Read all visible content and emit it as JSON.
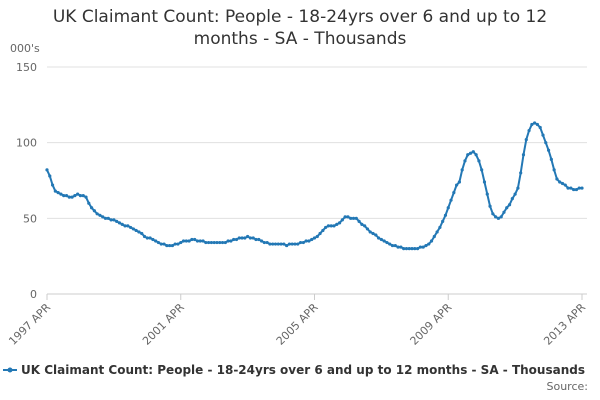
{
  "chart_data": {
    "type": "line",
    "title": "UK Claimant Count: People - 18-24yrs over 6 and up to 12 months - SA - Thousands",
    "y_axis_label": "000's",
    "source": "Source:",
    "ylim": [
      0,
      150
    ],
    "yticks": [
      0,
      50,
      100,
      150
    ],
    "grid": true,
    "legend": "bottom",
    "categories": [
      "1997 APR",
      null,
      null,
      null,
      null,
      null,
      null,
      null,
      null,
      null,
      null,
      null,
      null,
      null,
      null,
      null,
      null,
      null,
      null,
      null,
      null,
      null,
      null,
      null,
      null,
      null,
      null,
      null,
      null,
      null,
      null,
      null,
      null,
      null,
      null,
      null,
      null,
      null,
      null,
      null,
      null,
      null,
      null,
      null,
      null,
      null,
      null,
      null,
      "2001 APR",
      null,
      null,
      null,
      null,
      null,
      null,
      null,
      null,
      null,
      null,
      null,
      null,
      null,
      null,
      null,
      null,
      null,
      null,
      null,
      null,
      null,
      null,
      null,
      null,
      null,
      null,
      null,
      null,
      null,
      null,
      null,
      null,
      null,
      null,
      null,
      null,
      null,
      null,
      null,
      null,
      null,
      null,
      null,
      null,
      null,
      null,
      null,
      "2005 APR",
      null,
      null,
      null,
      null,
      null,
      null,
      null,
      null,
      null,
      null,
      null,
      null,
      null,
      null,
      null,
      null,
      null,
      null,
      null,
      null,
      null,
      null,
      null,
      null,
      null,
      null,
      null,
      null,
      null,
      null,
      null,
      null,
      null,
      null,
      null,
      null,
      null,
      null,
      null,
      null,
      null,
      null,
      null,
      null,
      null,
      null,
      null,
      "2009 APR",
      null,
      null,
      null,
      null,
      null,
      null,
      null,
      null,
      null,
      null,
      null,
      null,
      null,
      null,
      null,
      null,
      null,
      null,
      null,
      null,
      null,
      null,
      null,
      null,
      null,
      null,
      null,
      null,
      null,
      null,
      null,
      null,
      null,
      null,
      null,
      null,
      null,
      null,
      null,
      null,
      null,
      null,
      null,
      null,
      null,
      null,
      null,
      "2013 APR"
    ],
    "series": [
      {
        "name": "UK Claimant Count: People - 18-24yrs over 6 and up to 12 months - SA - Thousands",
        "color": "#2378b5",
        "values": [
          82,
          78,
          72,
          68,
          67,
          66,
          65,
          65,
          64,
          64,
          65,
          66,
          65,
          65,
          64,
          60,
          57,
          55,
          53,
          52,
          51,
          50,
          50,
          49,
          49,
          48,
          47,
          46,
          45,
          45,
          44,
          43,
          42,
          41,
          40,
          38,
          37,
          37,
          36,
          35,
          34,
          33,
          33,
          32,
          32,
          32,
          33,
          33,
          34,
          35,
          35,
          35,
          36,
          36,
          35,
          35,
          35,
          34,
          34,
          34,
          34,
          34,
          34,
          34,
          34,
          35,
          35,
          36,
          36,
          37,
          37,
          37,
          38,
          37,
          37,
          36,
          36,
          35,
          34,
          34,
          33,
          33,
          33,
          33,
          33,
          33,
          32,
          33,
          33,
          33,
          33,
          34,
          34,
          35,
          35,
          36,
          37,
          38,
          40,
          42,
          44,
          45,
          45,
          45,
          46,
          47,
          49,
          51,
          51,
          50,
          50,
          50,
          48,
          46,
          45,
          43,
          41,
          40,
          39,
          37,
          36,
          35,
          34,
          33,
          32,
          32,
          31,
          31,
          30,
          30,
          30,
          30,
          30,
          30,
          31,
          31,
          32,
          33,
          35,
          38,
          41,
          44,
          48,
          52,
          57,
          62,
          67,
          72,
          74,
          82,
          88,
          92,
          93,
          94,
          92,
          88,
          82,
          74,
          66,
          58,
          53,
          51,
          50,
          51,
          54,
          57,
          59,
          63,
          66,
          70,
          80,
          92,
          102,
          108,
          112,
          113,
          112,
          110,
          105,
          100,
          95,
          89,
          82,
          76,
          74,
          73,
          72,
          70,
          70,
          69,
          69,
          70,
          70
        ]
      }
    ]
  }
}
